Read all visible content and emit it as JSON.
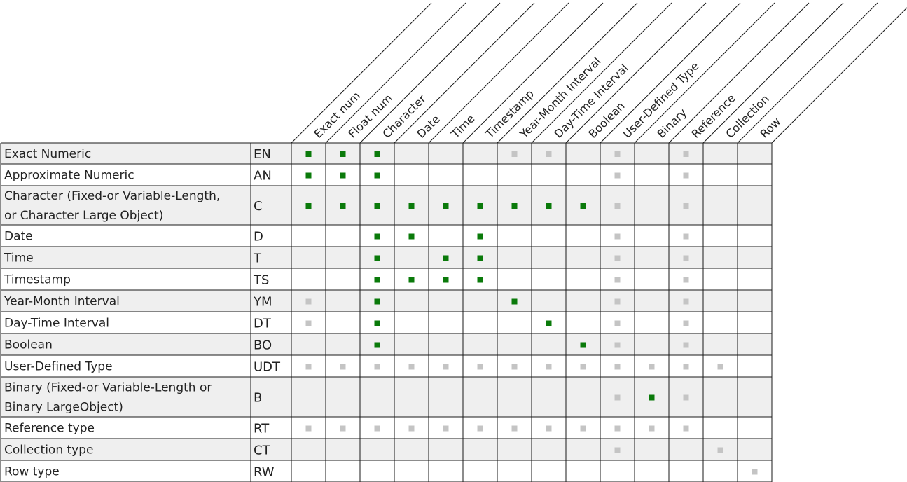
{
  "columns": [
    "Exact num",
    "Float num",
    "Character",
    "Date",
    "Time",
    "Timestamp",
    "Year-Month Interval",
    "Day-Time Interval",
    "Boolean",
    "User-Defined Type",
    "Binary",
    "Reference",
    "Collection",
    "Row"
  ],
  "rows": [
    {
      "lines": [
        "Exact Numeric"
      ],
      "abbr": "EN",
      "cells": "GGG...LL.L.L.."
    },
    {
      "lines": [
        "Approximate Numeric"
      ],
      "abbr": "AN",
      "cells": "GGG......L.L.."
    },
    {
      "lines": [
        "Character (Fixed-or Variable-Length,",
        "or Character Large Object)"
      ],
      "abbr": "C",
      "cells": "GGGGGGGGGL.L.."
    },
    {
      "lines": [
        "Date"
      ],
      "abbr": "D",
      "cells": "..GG.G...L.L.."
    },
    {
      "lines": [
        "Time"
      ],
      "abbr": "T",
      "cells": "..G.GG...L.L.."
    },
    {
      "lines": [
        "Timestamp"
      ],
      "abbr": "TS",
      "cells": "..GGGG...L.L.."
    },
    {
      "lines": [
        "Year-Month Interval"
      ],
      "abbr": "YM",
      "cells": "L.G...G..L.L.."
    },
    {
      "lines": [
        "Day-Time Interval"
      ],
      "abbr": "DT",
      "cells": "L.G....G.L.L.."
    },
    {
      "lines": [
        "Boolean"
      ],
      "abbr": "BO",
      "cells": "..G.....GL.L.."
    },
    {
      "lines": [
        "User-Defined Type"
      ],
      "abbr": "UDT",
      "cells": "LLLLLLLLLLLLL."
    },
    {
      "lines": [
        "Binary (Fixed-or Variable-Length or",
        "Binary LargeObject)"
      ],
      "abbr": "B",
      "cells": ".........LGL.."
    },
    {
      "lines": [
        "Reference type"
      ],
      "abbr": "RT",
      "cells": "LLLLLLLLLLLL.."
    },
    {
      "lines": [
        "Collection type"
      ],
      "abbr": "CT",
      "cells": ".........L..L."
    },
    {
      "lines": [
        "Row type"
      ],
      "abbr": "RW",
      "cells": ".............L"
    }
  ],
  "colors": {
    "green_marker": "#0a7a0a",
    "gray_marker": "#c4c4c4",
    "shaded_row": "#efefef",
    "grid_line": "#1a1a1a"
  }
}
